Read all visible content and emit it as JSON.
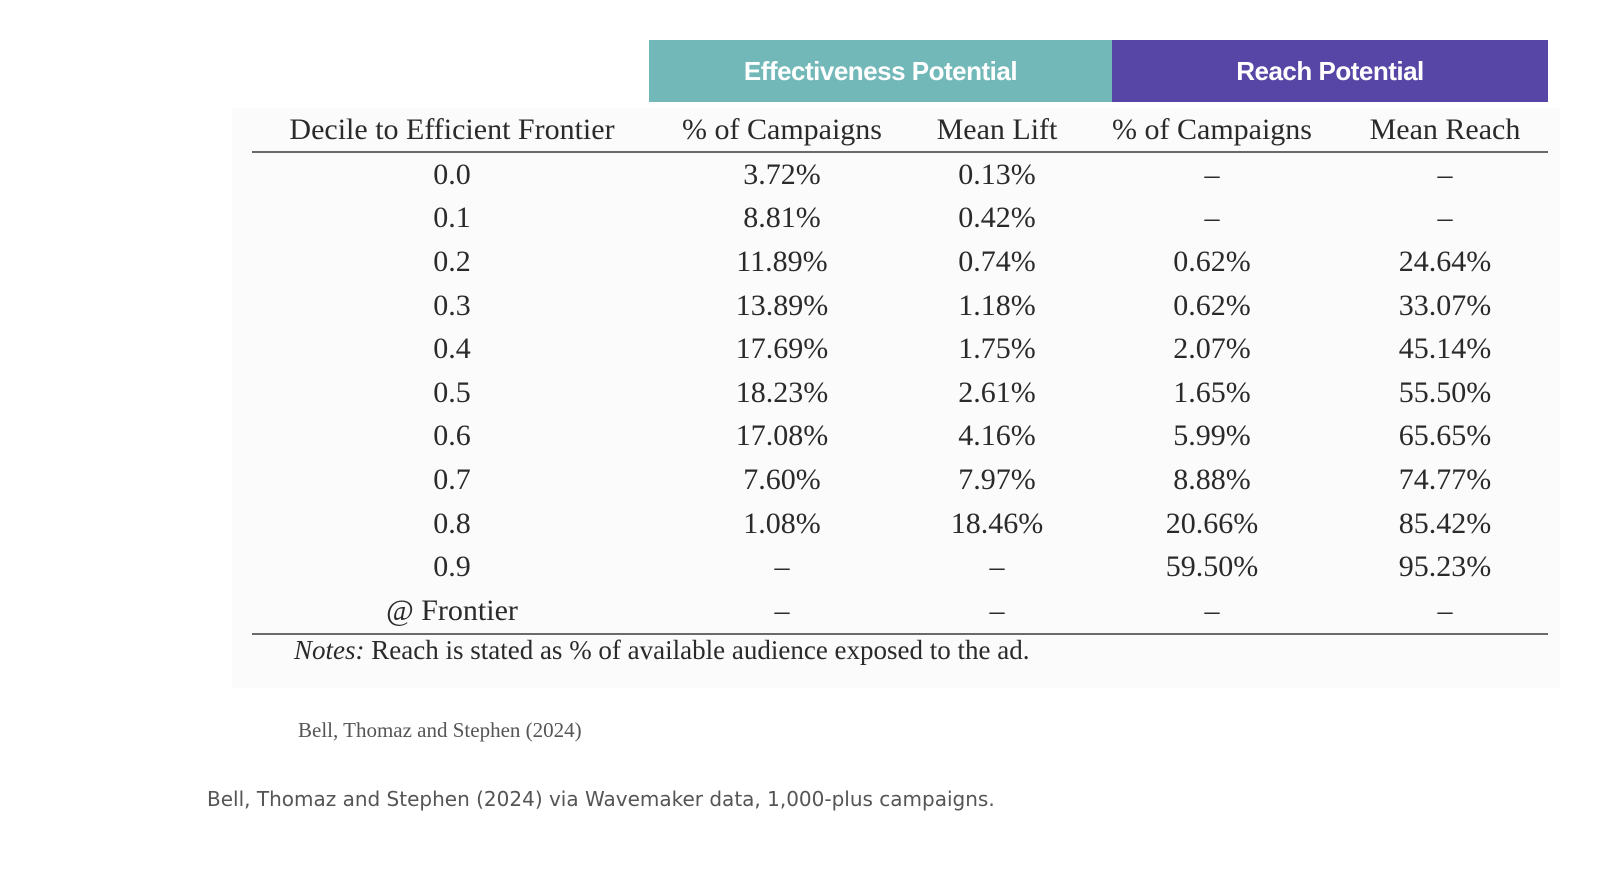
{
  "group_headers": {
    "effectiveness": "Effectiveness Potential",
    "reach": "Reach Potential",
    "effectiveness_color": "#72b8b8",
    "reach_color": "#5746a6"
  },
  "table": {
    "columns": [
      "Decile to Efficient Frontier",
      "% of Campaigns",
      "Mean Lift",
      "% of Campaigns",
      "Mean Reach"
    ],
    "rows": [
      [
        "0.0",
        "3.72%",
        "0.13%",
        "–",
        "–"
      ],
      [
        "0.1",
        "8.81%",
        "0.42%",
        "–",
        "–"
      ],
      [
        "0.2",
        "11.89%",
        "0.74%",
        "0.62%",
        "24.64%"
      ],
      [
        "0.3",
        "13.89%",
        "1.18%",
        "0.62%",
        "33.07%"
      ],
      [
        "0.4",
        "17.69%",
        "1.75%",
        "2.07%",
        "45.14%"
      ],
      [
        "0.5",
        "18.23%",
        "2.61%",
        "1.65%",
        "55.50%"
      ],
      [
        "0.6",
        "17.08%",
        "4.16%",
        "5.99%",
        "65.65%"
      ],
      [
        "0.7",
        "7.60%",
        "7.97%",
        "8.88%",
        "74.77%"
      ],
      [
        "0.8",
        "1.08%",
        "18.46%",
        "20.66%",
        "85.42%"
      ],
      [
        "0.9",
        "–",
        "–",
        "59.50%",
        "95.23%"
      ],
      [
        "@ Frontier",
        "–",
        "–",
        "–",
        "–"
      ]
    ]
  },
  "notes": {
    "label": "Notes:",
    "text": "Reach is stated as % of available audience exposed to the ad."
  },
  "image_credit": "Bell, Thomaz and Stephen (2024)",
  "caption": "Bell, Thomaz and Stephen (2024) via Wavemaker data, 1,000-plus campaigns."
}
